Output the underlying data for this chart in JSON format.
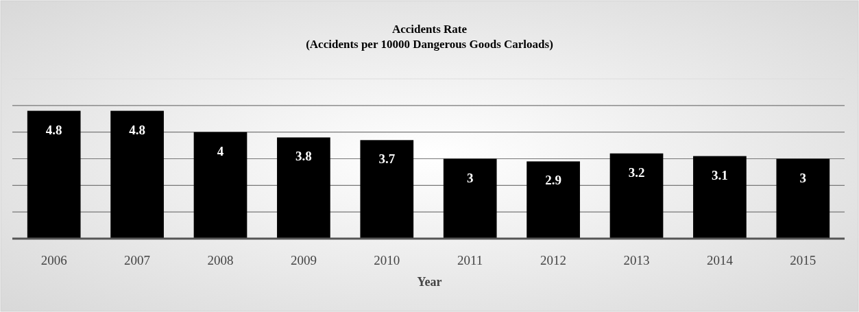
{
  "chart_data": {
    "type": "bar",
    "title": "Accidents Rate",
    "subtitle": "(Accidents per 10000 Dangerous Goods Carloads)",
    "xlabel": "Year",
    "categories": [
      "2006",
      "2007",
      "2008",
      "2009",
      "2010",
      "2011",
      "2012",
      "2013",
      "2014",
      "2015"
    ],
    "values": [
      4.8,
      4.8,
      4,
      3.8,
      3.7,
      3,
      2.9,
      3.2,
      3.1,
      3
    ],
    "color": "#000000",
    "data_labels": true,
    "ylim": [
      0,
      6
    ],
    "yticks": [
      {
        "value": 0,
        "label": null
      },
      {
        "value": 1,
        "label": null
      },
      {
        "value": 2,
        "label": null
      },
      {
        "value": 3,
        "label": null
      },
      {
        "value": 4,
        "label": null
      },
      {
        "value": 5,
        "label": null
      },
      {
        "value": 6,
        "label": null
      }
    ],
    "grid": "y",
    "tick_labels": "x"
  }
}
